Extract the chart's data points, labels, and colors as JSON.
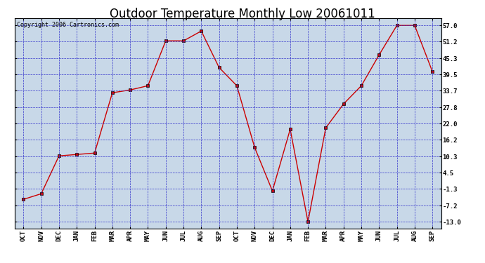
{
  "title": "Outdoor Temperature Monthly Low 20061011",
  "copyright": "Copyright 2006 Cartronics.com",
  "x_labels": [
    "OCT",
    "NOV",
    "DEC",
    "JAN",
    "FEB",
    "MAR",
    "APR",
    "MAY",
    "JUN",
    "JUL",
    "AUG",
    "SEP",
    "OCT",
    "NOV",
    "DEC",
    "JAN",
    "FEB",
    "MAR",
    "APR",
    "MAY",
    "JUN",
    "JUL",
    "AUG",
    "SEP"
  ],
  "y_values": [
    -5.0,
    -3.0,
    10.5,
    11.0,
    11.5,
    33.0,
    34.0,
    35.5,
    51.5,
    51.5,
    55.0,
    42.0,
    35.5,
    13.5,
    -2.0,
    20.0,
    -13.0,
    20.5,
    29.0,
    35.5,
    46.5,
    57.0,
    57.0,
    40.5
  ],
  "line_color": "#cc0000",
  "marker_color": "#cc0000",
  "bg_color": "#c8d8e8",
  "grid_color": "#3333cc",
  "border_color": "#000000",
  "y_ticks": [
    57.0,
    51.2,
    45.3,
    39.5,
    33.7,
    27.8,
    22.0,
    16.2,
    10.3,
    4.5,
    -1.3,
    -7.2,
    -13.0
  ],
  "ylim_min": -15.5,
  "ylim_max": 59.5,
  "title_fontsize": 12,
  "label_fontsize": 6.5,
  "copyright_fontsize": 6,
  "figwidth": 6.9,
  "figheight": 3.75,
  "dpi": 100
}
